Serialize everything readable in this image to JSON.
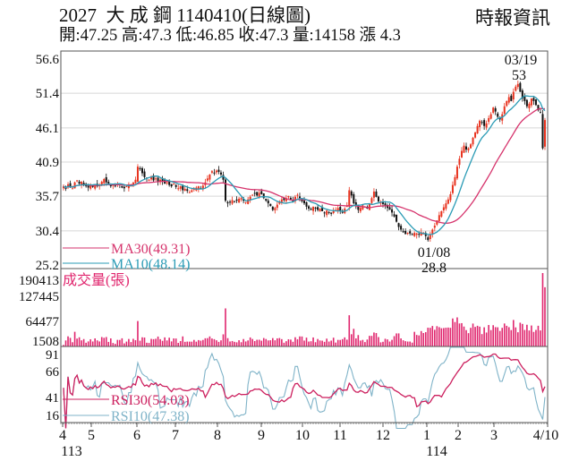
{
  "header": {
    "title": "2027  大 成 鋼 1140410(日線圖)",
    "ohlc_line": "開:47.25 高:47.3 低:46.85 收:47.3 量:14158 漲 4.3",
    "source": "時報資訊"
  },
  "colors": {
    "up": "#e8321e",
    "down": "#111111",
    "ma30": "#d6336c",
    "ma10": "#2a9bb5",
    "volume": "#e0266e",
    "rsi30": "#cc1f5e",
    "rsi10": "#7fb3c8",
    "grid": "#d8d8d8",
    "axis": "#555555"
  },
  "chart_data": [
    {
      "type": "candlestick",
      "title": "2027 大成鋼 1140410(日線圖)",
      "ylabel": "",
      "y_ticks": [
        "56.6",
        "51.4",
        "46.1",
        "40.9",
        "35.7",
        "30.4",
        "25.2"
      ],
      "ylim": [
        25.2,
        56.6
      ],
      "annotations": [
        {
          "label": "03/19",
          "value": "53",
          "type": "high"
        },
        {
          "label": "01/08",
          "value": "28.8",
          "type": "low"
        }
      ],
      "legend": [
        {
          "name": "MA30",
          "label": "MA30(49.31)",
          "value": 49.31
        },
        {
          "name": "MA10",
          "label": "MA10(48.14)",
          "value": 48.14
        }
      ],
      "close_series": [
        37.2,
        36.8,
        37.5,
        37.0,
        36.9,
        37.8,
        38.1,
        37.6,
        37.9,
        37.4,
        37.2,
        37.0,
        37.3,
        37.1,
        37.5,
        37.2,
        37.4,
        37.9,
        38.3,
        37.8,
        37.6,
        37.2,
        37.4,
        37.3,
        37.6,
        37.4,
        37.0,
        36.9,
        37.2,
        37.5,
        37.3,
        37.8,
        38.2,
        40.2,
        39.8,
        39.2,
        38.6,
        38.4,
        38.2,
        38.6,
        38.1,
        38.4,
        37.9,
        38.2,
        38.0,
        37.6,
        37.8,
        37.4,
        37.2,
        37.6,
        37.1,
        36.9,
        37.2,
        36.6,
        36.8,
        36.5,
        36.3,
        36.6,
        36.8,
        37.0,
        37.2,
        36.9,
        37.3,
        37.8,
        38.4,
        39.0,
        39.5,
        39.2,
        39.6,
        39.4,
        39.0,
        38.2,
        35.0,
        34.6,
        34.8,
        35.1,
        34.9,
        35.0,
        35.3,
        35.4,
        35.0,
        34.8,
        35.2,
        35.6,
        35.9,
        36.1,
        35.8,
        36.2,
        36.0,
        35.4,
        35.0,
        34.6,
        34.2,
        33.6,
        33.9,
        34.4,
        34.8,
        35.2,
        35.1,
        35.4,
        35.7,
        35.2,
        34.9,
        35.6,
        35.9,
        35.4,
        34.9,
        34.6,
        34.1,
        33.8,
        33.6,
        34.1,
        33.9,
        33.6,
        33.8,
        33.4,
        33.1,
        33.5,
        33.2,
        33.0,
        33.4,
        33.6,
        33.9,
        33.5,
        33.2,
        33.8,
        34.2,
        36.6,
        35.8,
        34.6,
        34.2,
        33.6,
        33.9,
        34.3,
        34.1,
        33.8,
        34.6,
        35.4,
        36.4,
        35.6,
        34.9,
        34.7,
        34.5,
        34.2,
        33.9,
        33.6,
        33.2,
        32.6,
        31.8,
        31.0,
        30.6,
        30.2,
        29.9,
        30.1,
        30.0,
        29.8,
        30.1,
        30.0,
        29.9,
        30.2,
        30.0,
        29.6,
        29.0,
        29.8,
        30.6,
        31.2,
        32.0,
        32.8,
        33.4,
        34.0,
        34.6,
        35.2,
        36.0,
        37.4,
        38.6,
        40.2,
        41.4,
        42.6,
        43.4,
        42.8,
        43.0,
        43.6,
        44.6,
        45.4,
        46.4,
        47.2,
        47.0,
        46.4,
        46.8,
        47.6,
        48.2,
        49.2,
        48.6,
        47.8,
        47.4,
        48.2,
        49.4,
        50.2,
        50.8,
        50.2,
        51.6,
        52.4,
        52.8,
        51.6,
        50.6,
        50.2,
        49.4,
        49.8,
        50.6,
        50.2,
        49.6,
        48.8,
        48.4,
        43.0,
        47.3
      ],
      "x_ticks": [
        {
          "label": "4",
          "sub": "113"
        },
        {
          "label": "5"
        },
        {
          "label": "6"
        },
        {
          "label": "7"
        },
        {
          "label": "8"
        },
        {
          "label": "9"
        },
        {
          "label": "10"
        },
        {
          "label": "11"
        },
        {
          "label": "12"
        },
        {
          "label": "1",
          "sub": "114"
        },
        {
          "label": "2"
        },
        {
          "label": "3"
        },
        {
          "label": "4/10"
        }
      ]
    },
    {
      "type": "bar",
      "title": "成交量(張)",
      "y_ticks": [
        "190413",
        "127445",
        "64477",
        "1508"
      ],
      "ylim": [
        1508,
        190413
      ]
    },
    {
      "type": "line",
      "title": "RSI",
      "y_ticks": [
        "91",
        "66",
        "41",
        "16"
      ],
      "ylim": [
        16,
        91
      ],
      "legend": [
        {
          "name": "RSI30",
          "label": "RSI30(54.03)",
          "value": 54.03
        },
        {
          "name": "RSI10",
          "label": "RSI10(47.38)",
          "value": 47.38
        }
      ]
    }
  ],
  "volume_panel": {
    "label": "成交量(張)"
  },
  "x_axis": {
    "ticks": [
      "4",
      "5",
      "6",
      "7",
      "8",
      "9",
      "10",
      "11",
      "12",
      "1",
      "2",
      "3",
      "4/10"
    ],
    "years": [
      "113",
      "114"
    ]
  }
}
